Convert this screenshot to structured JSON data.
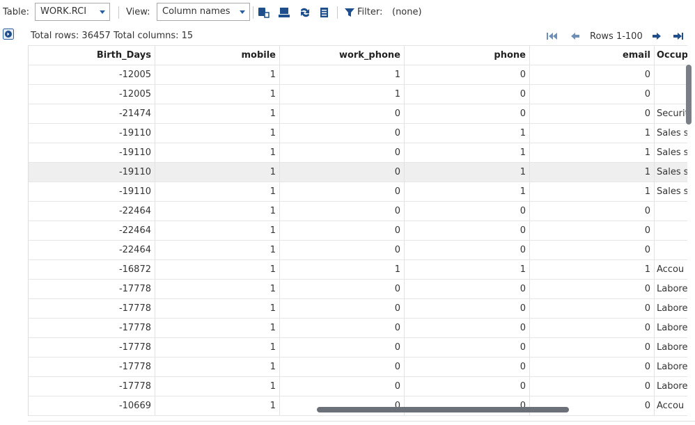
{
  "toolbar": {
    "table_label": "Table:",
    "table_value": "WORK.RCI",
    "view_label": "View:",
    "view_value": "Column names",
    "filter_label": "Filter:",
    "filter_value": "(none)"
  },
  "info": {
    "total_rows": "Total rows: 36457",
    "total_columns": "Total columns: 15",
    "pager": "Rows 1-100"
  },
  "table": {
    "columns": [
      "Birth_Days",
      "mobile",
      "work_phone",
      "phone",
      "email",
      "Occup"
    ],
    "rows": [
      [
        "-12005",
        "1",
        "1",
        "0",
        "0",
        null
      ],
      [
        "-12005",
        "1",
        "1",
        "0",
        "0",
        null
      ],
      [
        "-21474",
        "1",
        "0",
        "0",
        "0",
        "Securit"
      ],
      [
        "-19110",
        "1",
        "0",
        "1",
        "1",
        "Sales s"
      ],
      [
        "-19110",
        "1",
        "0",
        "1",
        "1",
        "Sales s"
      ],
      [
        "-19110",
        "1",
        "0",
        "1",
        "1",
        "Sales s"
      ],
      [
        "-19110",
        "1",
        "0",
        "1",
        "1",
        "Sales s"
      ],
      [
        "-22464",
        "1",
        "0",
        "0",
        "0",
        null
      ],
      [
        "-22464",
        "1",
        "0",
        "0",
        "0",
        null
      ],
      [
        "-22464",
        "1",
        "0",
        "0",
        "0",
        null
      ],
      [
        "-16872",
        "1",
        "1",
        "1",
        "1",
        "Accou"
      ],
      [
        "-17778",
        "1",
        "0",
        "0",
        "0",
        "Labore"
      ],
      [
        "-17778",
        "1",
        "0",
        "0",
        "0",
        "Labore"
      ],
      [
        "-17778",
        "1",
        "0",
        "0",
        "0",
        "Labore"
      ],
      [
        "-17778",
        "1",
        "0",
        "0",
        "0",
        "Labore"
      ],
      [
        "-17778",
        "1",
        "0",
        "0",
        "0",
        "Labore"
      ],
      [
        "-17778",
        "1",
        "0",
        "0",
        "0",
        "Labore"
      ],
      [
        "-10669",
        "1",
        "0",
        "0",
        "0",
        "Accou"
      ]
    ]
  }
}
